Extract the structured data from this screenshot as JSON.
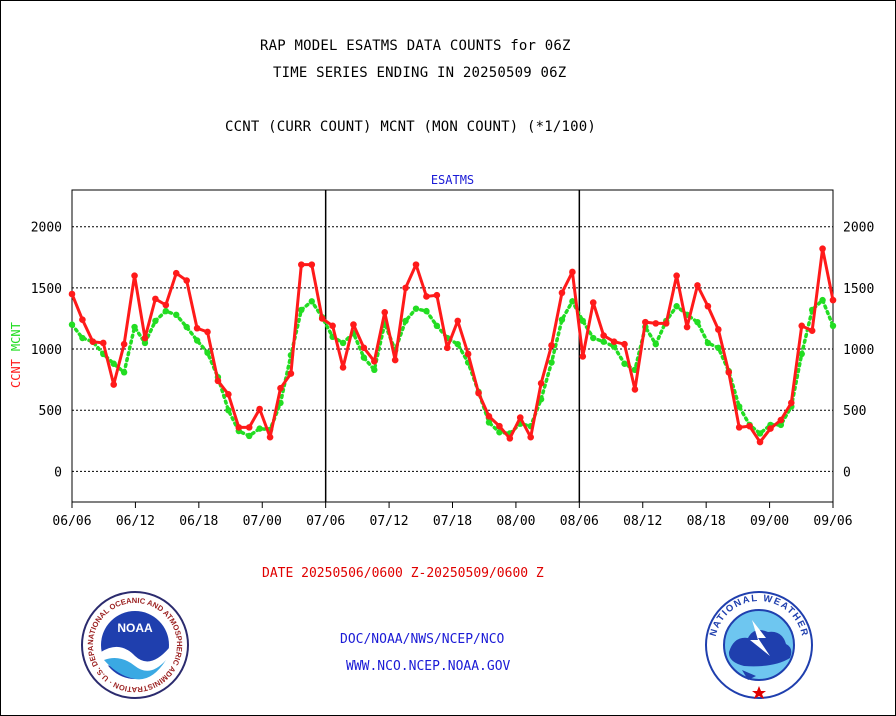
{
  "header": {
    "title_line1": "RAP MODEL ESATMS DATA COUNTS for 06Z",
    "title_line2": "TIME SERIES ENDING IN 20250509 06Z",
    "subtitle": "CCNT (CURR COUNT) MCNT (MON COUNT) (*1/100)"
  },
  "footer": {
    "date_range": "DATE 20250506/0600 Z-20250509/0600 Z",
    "org_path": "DOC/NOAA/NWS/NCEP/NCO",
    "website": "WWW.NCO.NCEP.NOAA.GOV",
    "noaa_logo_text": "NOAA",
    "noaa_ring_text": "NATIONAL OCEANIC AND ATMOSPHERIC ADMINISTRATION · U.S. DEPARTMENT OF COMMERCE ·",
    "nws_ring_text": "NATIONAL WEATHER SERVICE"
  },
  "chart_data": {
    "type": "line",
    "title": "ESATMS",
    "ylabel_left": [
      "CCNT",
      "MCNT"
    ],
    "ylim": [
      -250,
      2300
    ],
    "yticks": [
      0,
      500,
      1000,
      1500,
      2000
    ],
    "grid": true,
    "x_tick_labels": [
      "06/06",
      "06/12",
      "06/18",
      "07/00",
      "07/06",
      "07/12",
      "07/18",
      "08/00",
      "08/06",
      "08/12",
      "08/18",
      "09/00",
      "09/06"
    ],
    "panel_separators_at_tick": [
      4,
      8
    ],
    "colors": {
      "ccnt": "#ff1a1a",
      "mcnt": "#22dd22",
      "axis": "#000000",
      "title": "#1a1ad6"
    },
    "series": [
      {
        "name": "CCNT",
        "values": [
          1450,
          1240,
          1060,
          1050,
          710,
          1040,
          1600,
          1090,
          1410,
          1360,
          1620,
          1560,
          1170,
          1140,
          740,
          630,
          360,
          360,
          510,
          280,
          680,
          800,
          1690,
          1690,
          1250,
          1190,
          850,
          1200,
          1010,
          900,
          1300,
          910,
          1500,
          1690,
          1430,
          1440,
          1010,
          1230,
          960,
          640,
          450,
          370,
          270,
          440,
          280,
          720,
          1030,
          1460,
          1630,
          940,
          1380,
          1110,
          1060,
          1040,
          670,
          1220,
          1210,
          1210,
          1600,
          1180,
          1520,
          1350,
          1160,
          810,
          360,
          370,
          240,
          350,
          420,
          560,
          1190,
          1150,
          1820,
          1400
        ]
      },
      {
        "name": "MCNT",
        "values": [
          1200,
          1090,
          1060,
          960,
          880,
          810,
          1180,
          1050,
          1230,
          1310,
          1280,
          1180,
          1070,
          970,
          770,
          500,
          330,
          290,
          350,
          340,
          560,
          950,
          1320,
          1390,
          1260,
          1100,
          1050,
          1130,
          930,
          830,
          1210,
          990,
          1230,
          1330,
          1310,
          1190,
          1090,
          1040,
          890,
          650,
          400,
          320,
          310,
          390,
          370,
          590,
          890,
          1240,
          1390,
          1230,
          1090,
          1060,
          1020,
          880,
          830,
          1180,
          1040,
          1230,
          1350,
          1280,
          1220,
          1050,
          1010,
          820,
          530,
          380,
          310,
          380,
          380,
          530,
          960,
          1320,
          1400,
          1190
        ]
      }
    ]
  }
}
